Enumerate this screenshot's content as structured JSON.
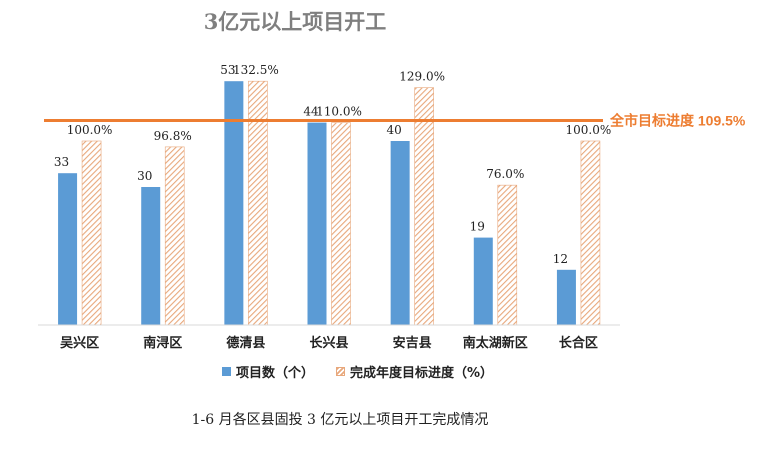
{
  "chart_data": {
    "type": "bar",
    "title": "3亿元以上项目开工",
    "categories": [
      "吴兴区",
      "南浔区",
      "德清县",
      "长兴县",
      "安吉县",
      "南太湖新区",
      "长合区"
    ],
    "series": [
      {
        "name": "项目数（个）",
        "values": [
          33,
          30,
          53,
          44,
          40,
          19,
          12
        ],
        "labels": [
          "33",
          "30",
          "53",
          "44",
          "40",
          "19",
          "12"
        ],
        "color": "#5b9bd5"
      },
      {
        "name": "完成年度目标进度（%）",
        "values": [
          100.0,
          96.8,
          132.5,
          110.0,
          129.0,
          76.0,
          100.0
        ],
        "labels": [
          "100.0%",
          "96.8%",
          "132.5%",
          "110.0%",
          "129.0%",
          "76.0%",
          "100.0%"
        ],
        "color": "#e8a87c",
        "pattern": "hatched"
      }
    ],
    "reference_line": {
      "label": "全市目标进度 109.5%",
      "value": 109.5,
      "color": "#ed7d31"
    },
    "legend_position": "bottom",
    "grid": false
  },
  "caption": "1-6 月各区县固投 3 亿元以上项目开工完成情况"
}
